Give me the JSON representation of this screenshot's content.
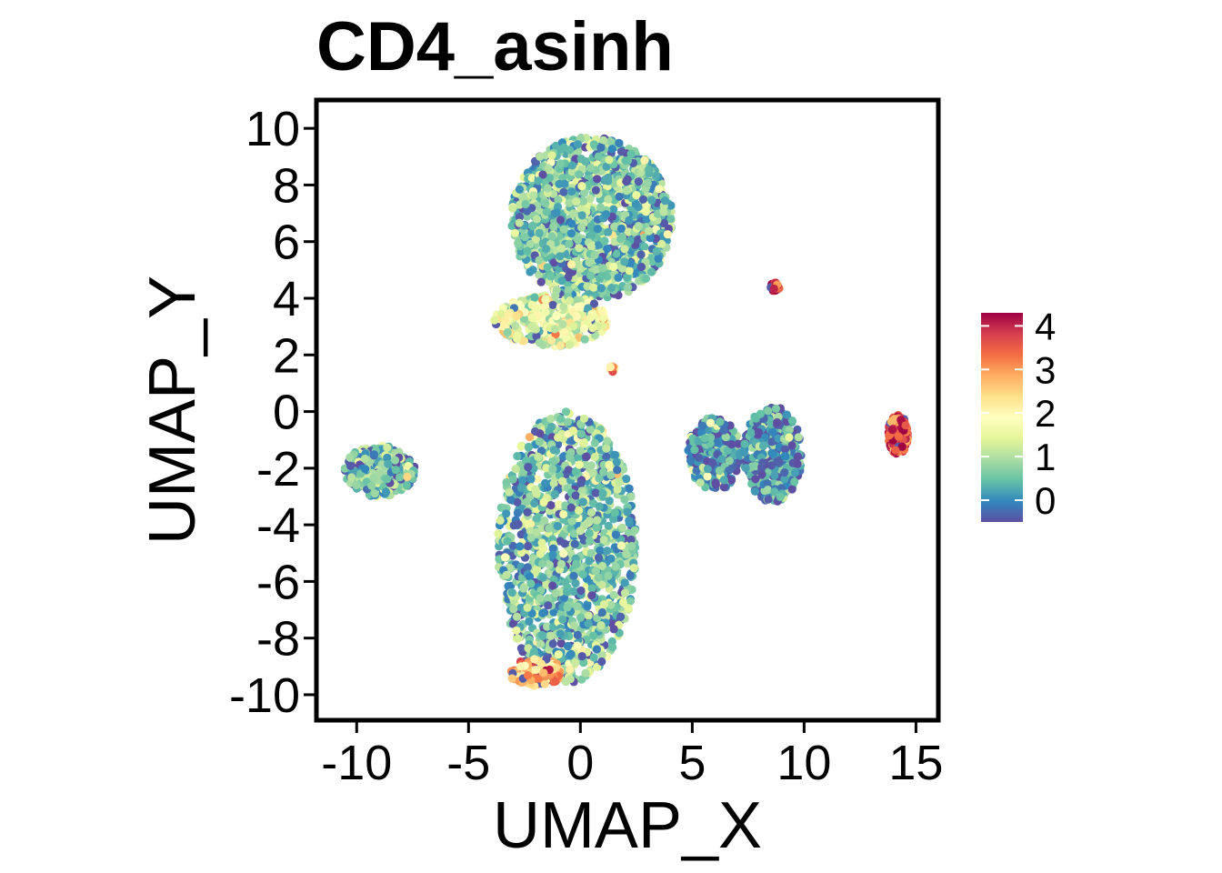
{
  "chart_data": {
    "type": "scatter",
    "title": "CD4_asinh",
    "xlabel": "UMAP_X",
    "ylabel": "UMAP_Y",
    "xlim": [
      -11.8,
      16
    ],
    "ylim": [
      -10.9,
      11
    ],
    "x_ticks": [
      -10,
      -5,
      0,
      5,
      10,
      15
    ],
    "x_tick_labels": [
      "-10",
      "-5",
      "0",
      "5",
      "10",
      "15"
    ],
    "y_ticks": [
      -10,
      -8,
      -6,
      -4,
      -2,
      0,
      2,
      4,
      6,
      8,
      10
    ],
    "y_tick_labels": [
      "-10",
      "-8",
      "-6",
      "-4",
      "-2",
      "0",
      "2",
      "4",
      "6",
      "8",
      "10"
    ],
    "grid": false,
    "colorbar": {
      "title": "",
      "range": [
        -0.5,
        4.3
      ],
      "ticks": [
        0,
        1,
        2,
        3,
        4
      ],
      "tick_labels": [
        "0",
        "1",
        "2",
        "3",
        "4"
      ],
      "palette": "Spectral",
      "colors": [
        "#5e4fa2",
        "#3288bd",
        "#66c2a5",
        "#abdda4",
        "#e6f598",
        "#ffffbf",
        "#fee08b",
        "#fdae61",
        "#f46d43",
        "#d53e4f",
        "#9e0142"
      ]
    },
    "clusters": [
      {
        "id": "upper-blob",
        "center": [
          0.5,
          6.8
        ],
        "spread": [
          3.6,
          2.9
        ],
        "expression_mean": 0.6,
        "approx_points": 1400
      },
      {
        "id": "upper-blob-base",
        "center": [
          -1.3,
          3.2
        ],
        "spread": [
          2.6,
          0.9
        ],
        "expression_mean": 1.6,
        "approx_points": 320
      },
      {
        "id": "lower-blob",
        "center": [
          -0.6,
          -4.8
        ],
        "spread": [
          3.1,
          4.8
        ],
        "expression_mean": 0.6,
        "approx_points": 1400
      },
      {
        "id": "lower-blob-tip",
        "center": [
          -2.0,
          -9.2
        ],
        "spread": [
          1.2,
          0.5
        ],
        "expression_mean": 2.8,
        "approx_points": 120
      },
      {
        "id": "left-blob",
        "center": [
          -9.0,
          -2.1
        ],
        "spread": [
          1.6,
          0.9
        ],
        "expression_mean": 0.5,
        "approx_points": 300
      },
      {
        "id": "right-blob-left",
        "center": [
          6.0,
          -1.5
        ],
        "spread": [
          1.2,
          1.3
        ],
        "expression_mean": 0.1,
        "approx_points": 260
      },
      {
        "id": "right-blob-right",
        "center": [
          8.6,
          -1.5
        ],
        "spread": [
          1.3,
          1.7
        ],
        "expression_mean": 0.2,
        "approx_points": 420
      },
      {
        "id": "small-red-upper",
        "center": [
          8.7,
          4.4
        ],
        "spread": [
          0.2,
          0.15
        ],
        "expression_mean": 4.1,
        "approx_points": 30
      },
      {
        "id": "far-right-red",
        "center": [
          14.2,
          -0.8
        ],
        "spread": [
          0.45,
          0.7
        ],
        "expression_mean": 3.6,
        "approx_points": 160
      },
      {
        "id": "small-orange",
        "center": [
          1.4,
          1.5
        ],
        "spread": [
          0.15,
          0.1
        ],
        "expression_mean": 2.5,
        "approx_points": 10
      }
    ]
  }
}
